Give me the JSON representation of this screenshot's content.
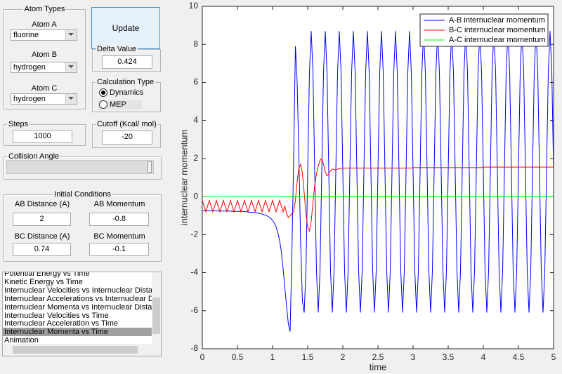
{
  "controls": {
    "atom_types": {
      "title": "Atom Types",
      "atom_a": {
        "label": "Atom A",
        "value": "fluorine"
      },
      "atom_b": {
        "label": "Atom B",
        "value": "hydrogen"
      },
      "atom_c": {
        "label": "Atom C",
        "value": "hydrogen"
      }
    },
    "update_button": "Update",
    "delta_value": {
      "title": "Delta Value",
      "value": "0.424"
    },
    "calculation_type": {
      "title": "Calculation Type",
      "options": [
        "Dynamics",
        "MEP"
      ],
      "selected": 0
    },
    "steps": {
      "title": "Steps",
      "value": "1000"
    },
    "cutoff": {
      "title": "Cutoff (Kcal/ mol)",
      "value": "-20"
    },
    "collision_angle": {
      "title": "Collision Angle"
    },
    "initial_conditions": {
      "title": "Initial Conditions",
      "ab_distance": {
        "label": "AB Distance (A)",
        "value": "2"
      },
      "ab_momentum": {
        "label": "AB Momentum",
        "value": "-0.8"
      },
      "bc_distance": {
        "label": "BC Distance (A)",
        "value": "0.74"
      },
      "bc_momentum": {
        "label": "BC Momentum",
        "value": "-0.1"
      }
    },
    "plot_list": {
      "items": [
        "Potential Energy vs Time",
        "Kinetic Energy vs Time",
        "Internuclear Velocities vs Internuclear Distance",
        "Internuclear Accelerations vs Internuclear Distance",
        "Internuclear Momenta vs Internuclear Distance",
        "Internuclear Velocities vs Time",
        "Internuclear Acceleration vs Time",
        "Internuclear Momenta vs Time",
        "Animation"
      ],
      "selected": 7
    }
  },
  "chart_data": {
    "type": "line",
    "xlabel": "time",
    "ylabel": "internuclear momentum",
    "xlim": [
      0,
      5
    ],
    "ylim": [
      -8,
      10
    ],
    "xticks": [
      0,
      0.5,
      1,
      1.5,
      2,
      2.5,
      3,
      3.5,
      4,
      4.5,
      5
    ],
    "yticks": [
      -8,
      -6,
      -4,
      -2,
      0,
      2,
      4,
      6,
      8,
      10
    ],
    "legend": "upper right",
    "x": [
      0,
      0.025,
      0.05,
      0.075,
      0.1,
      0.125,
      0.15,
      0.175,
      0.2,
      0.225,
      0.25,
      0.275,
      0.3,
      0.325,
      0.35,
      0.375,
      0.4,
      0.425,
      0.45,
      0.475,
      0.5,
      0.525,
      0.55,
      0.575,
      0.6,
      0.625,
      0.65,
      0.675,
      0.7,
      0.725,
      0.75,
      0.775,
      0.8,
      0.825,
      0.85,
      0.875,
      0.9,
      0.925,
      0.95,
      0.975,
      1,
      1.025,
      1.05,
      1.075,
      1.1,
      1.125,
      1.15,
      1.175,
      1.2,
      1.225,
      1.25,
      1.275,
      1.3,
      1.325,
      1.35,
      1.375,
      1.4,
      1.425,
      1.45,
      1.475,
      1.5,
      1.525,
      1.55,
      1.575,
      1.6,
      1.625,
      1.65,
      1.675,
      1.7,
      1.725,
      1.75,
      1.775,
      1.8,
      1.825,
      1.85,
      1.875,
      1.9,
      1.925,
      1.95,
      1.975,
      2,
      2.025,
      2.05,
      2.075,
      2.1,
      2.125,
      2.15,
      2.175,
      2.2,
      2.225,
      2.25,
      2.275,
      2.3,
      2.325,
      2.35,
      2.375,
      2.4,
      2.425,
      2.45,
      2.475,
      2.5,
      2.525,
      2.55,
      2.575,
      2.6,
      2.625,
      2.65,
      2.675,
      2.7,
      2.725,
      2.75,
      2.775,
      2.8,
      2.825,
      2.85,
      2.875,
      2.9,
      2.925,
      2.95,
      2.975,
      3,
      3.025,
      3.05,
      3.075,
      3.1,
      3.125,
      3.15,
      3.175,
      3.2,
      3.225,
      3.25,
      3.275,
      3.3,
      3.325,
      3.35,
      3.375,
      3.4,
      3.425,
      3.45,
      3.475,
      3.5,
      3.525,
      3.55,
      3.575,
      3.6,
      3.625,
      3.65,
      3.675,
      3.7,
      3.725,
      3.75,
      3.775,
      3.8,
      3.825,
      3.85,
      3.875,
      3.9,
      3.925,
      3.95,
      3.975,
      4,
      4.025,
      4.05,
      4.075,
      4.1,
      4.125,
      4.15,
      4.175,
      4.2,
      4.225,
      4.25,
      4.275,
      4.3,
      4.325,
      4.35,
      4.375,
      4.4,
      4.425,
      4.45,
      4.475,
      4.5,
      4.525,
      4.55,
      4.575,
      4.6,
      4.625,
      4.65,
      4.675,
      4.7,
      4.725,
      4.75,
      4.775,
      4.8,
      4.825,
      4.85,
      4.875,
      4.9,
      4.925,
      4.95,
      4.975,
      5
    ],
    "series": [
      {
        "name": "A-B internuclear momentum",
        "color": "#0000ff",
        "values": [
          -0.75,
          -0.75,
          -0.75,
          -0.75,
          -0.75,
          -0.75,
          -0.75,
          -0.75,
          -0.75,
          -0.76,
          -0.76,
          -0.76,
          -0.76,
          -0.76,
          -0.76,
          -0.76,
          -0.76,
          -0.78,
          -0.78,
          -0.78,
          -0.78,
          -0.78,
          -0.78,
          -0.78,
          -0.78,
          -0.8,
          -0.81,
          -0.82,
          -0.83,
          -0.84,
          -0.85,
          -0.86,
          -0.88,
          -0.9,
          -0.92,
          -0.95,
          -0.98,
          -1.02,
          -1.08,
          -1.15,
          -1.25,
          -1.4,
          -1.6,
          -1.9,
          -2.3,
          -2.9,
          -3.8,
          -4.8,
          -5.8,
          -6.7,
          -7.1,
          -3,
          2,
          7.9,
          6,
          2,
          -2.5,
          -5.5,
          -6.1,
          -3.93,
          1.3,
          6.53,
          8.7,
          6.53,
          1.3,
          -3.93,
          -6.1,
          -3.93,
          1.3,
          6.53,
          8.7,
          6.53,
          1.3,
          -3.93,
          -6.1,
          -3.93,
          1.3,
          6.53,
          8.7,
          6.53,
          1.3,
          -3.93,
          -6.1,
          -3.93,
          1.3,
          6.53,
          8.7,
          6.53,
          1.3,
          -3.93,
          -6.1,
          -3.93,
          1.3,
          6.53,
          8.7,
          6.53,
          1.3,
          -3.93,
          -6.1,
          -3.93,
          1.3,
          6.53,
          8.7,
          6.53,
          1.3,
          -3.93,
          -6.1,
          -3.93,
          1.3,
          6.53,
          8.7,
          6.53,
          1.3,
          -3.93,
          -6.1,
          -3.93,
          1.3,
          6.53,
          8.7,
          6.53,
          1.3,
          -3.93,
          -6.1,
          -3.93,
          1.3,
          6.53,
          8.7,
          6.53,
          1.3,
          -3.93,
          -6.1,
          -3.93,
          1.3,
          6.53,
          8.7,
          6.53,
          1.3,
          -3.93,
          -6.1,
          -3.93,
          1.3,
          6.53,
          8.7,
          6.53,
          1.3,
          -3.93,
          -6.1,
          -3.93,
          1.3,
          6.53,
          8.7,
          6.53,
          1.3,
          -3.93,
          -6.1,
          -3.93,
          1.3,
          6.53,
          8.7,
          6.53,
          1.3,
          -3.93,
          -6.1,
          -3.93,
          1.3,
          6.53,
          8.7,
          6.53,
          1.3,
          -3.93,
          -6.1,
          -3.93,
          1.3,
          6.53,
          8.7,
          6.53,
          1.3,
          -3.93,
          -6.1,
          -3.93,
          1.3,
          6.53,
          8.7,
          6.53,
          1.3,
          -3.93,
          -6.1,
          -3.93,
          1.3,
          6.53,
          8.7,
          6.53,
          1.3,
          -3.93,
          -6.1,
          -3.93,
          1.3,
          6.53,
          8.7,
          6.53,
          1.3
        ]
      },
      {
        "name": "B-C internuclear momentum",
        "color": "#ff0000",
        "values": [
          -0.2,
          -0.5,
          -0.8,
          -0.5,
          -0.2,
          -0.5,
          -0.8,
          -0.5,
          -0.2,
          -0.5,
          -0.8,
          -0.5,
          -0.2,
          -0.5,
          -0.8,
          -0.5,
          -0.2,
          -0.5,
          -0.8,
          -0.5,
          -0.2,
          -0.5,
          -0.8,
          -0.5,
          -0.2,
          -0.5,
          -0.8,
          -0.5,
          -0.2,
          -0.5,
          -0.8,
          -0.5,
          -0.2,
          -0.5,
          -0.8,
          -0.5,
          -0.2,
          -0.5,
          -0.8,
          -0.5,
          -0.2,
          -0.5,
          -0.8,
          -0.5,
          -0.2,
          -0.5,
          -0.8,
          -0.5,
          -0.9,
          -1.1,
          -1,
          -0.9,
          -0.8,
          -0.2,
          0.8,
          1.5,
          1.7,
          1.2,
          0.2,
          -0.9,
          -1.6,
          -1.8,
          -1.3,
          -0.3,
          0.6,
          1.2,
          1.6,
          1.9,
          2,
          1.7,
          1.3,
          1.1,
          1.2,
          1.35,
          1.45,
          1.42,
          1.4,
          1.44,
          1.47,
          1.49,
          1.5,
          1.5,
          1.5,
          1.5,
          1.5,
          1.5,
          1.5,
          1.5,
          1.5,
          1.5,
          1.5,
          1.5,
          1.5,
          1.5,
          1.5,
          1.5,
          1.5,
          1.5,
          1.5,
          1.5,
          1.5,
          1.5,
          1.5,
          1.5,
          1.5,
          1.5,
          1.5,
          1.5,
          1.5,
          1.5,
          1.5,
          1.5,
          1.5,
          1.5,
          1.5,
          1.5,
          1.5,
          1.5,
          1.5,
          1.5,
          1.52,
          1.52,
          1.52,
          1.52,
          1.52,
          1.52,
          1.52,
          1.52,
          1.52,
          1.52,
          1.52,
          1.52,
          1.52,
          1.52,
          1.52,
          1.52,
          1.52,
          1.52,
          1.52,
          1.52,
          1.52,
          1.52,
          1.52,
          1.52,
          1.52,
          1.52,
          1.52,
          1.52,
          1.52,
          1.52,
          1.52,
          1.52,
          1.52,
          1.52,
          1.52,
          1.52,
          1.52,
          1.52,
          1.52,
          1.52,
          1.55,
          1.55,
          1.55,
          1.55,
          1.55,
          1.55,
          1.55,
          1.55,
          1.55,
          1.55,
          1.55,
          1.55,
          1.55,
          1.55,
          1.55,
          1.55,
          1.55,
          1.55,
          1.55,
          1.55,
          1.55,
          1.55,
          1.55,
          1.55,
          1.55,
          1.55,
          1.55,
          1.55,
          1.55,
          1.55,
          1.55,
          1.55,
          1.55,
          1.55,
          1.55,
          1.55,
          1.55,
          1.55,
          1.55,
          1.55,
          1.55
        ]
      },
      {
        "name": "A-C internuclear momentum",
        "color": "#00ff00",
        "values": [
          0,
          0,
          0,
          0,
          0,
          0,
          0,
          0,
          0,
          0,
          0,
          0,
          0,
          0,
          0,
          0,
          0,
          0,
          0,
          0,
          0,
          0,
          0,
          0,
          0,
          0,
          0,
          0,
          0,
          0,
          0,
          0,
          0,
          0,
          0,
          0,
          0,
          0,
          0,
          0,
          0,
          0,
          0,
          0,
          0,
          0,
          0,
          0,
          0,
          0,
          0,
          0,
          0,
          0,
          0,
          0,
          0,
          0,
          0,
          0,
          0,
          0,
          0,
          0,
          0,
          0,
          0,
          0,
          0,
          0,
          0,
          0,
          0,
          0,
          0,
          0,
          0,
          0,
          0,
          0,
          0,
          0,
          0,
          0,
          0,
          0,
          0,
          0,
          0,
          0,
          0,
          0,
          0,
          0,
          0,
          0,
          0,
          0,
          0,
          0,
          0,
          0,
          0,
          0,
          0,
          0,
          0,
          0,
          0,
          0,
          0,
          0,
          0,
          0,
          0,
          0,
          0,
          0,
          0,
          0,
          0,
          0,
          0,
          0,
          0,
          0,
          0,
          0,
          0,
          0,
          0,
          0,
          0,
          0,
          0,
          0,
          0,
          0,
          0,
          0,
          0,
          0,
          0,
          0,
          0,
          0,
          0,
          0,
          0,
          0,
          0,
          0,
          0,
          0,
          0,
          0,
          0,
          0,
          0,
          0,
          0,
          0,
          0,
          0,
          0,
          0,
          0,
          0,
          0,
          0,
          0,
          0,
          0,
          0,
          0,
          0,
          0,
          0,
          0,
          0,
          0,
          0,
          0,
          0,
          0,
          0,
          0,
          0,
          0,
          0,
          0,
          0,
          0,
          0,
          0,
          0,
          0,
          0,
          0,
          0,
          0
        ]
      }
    ]
  }
}
